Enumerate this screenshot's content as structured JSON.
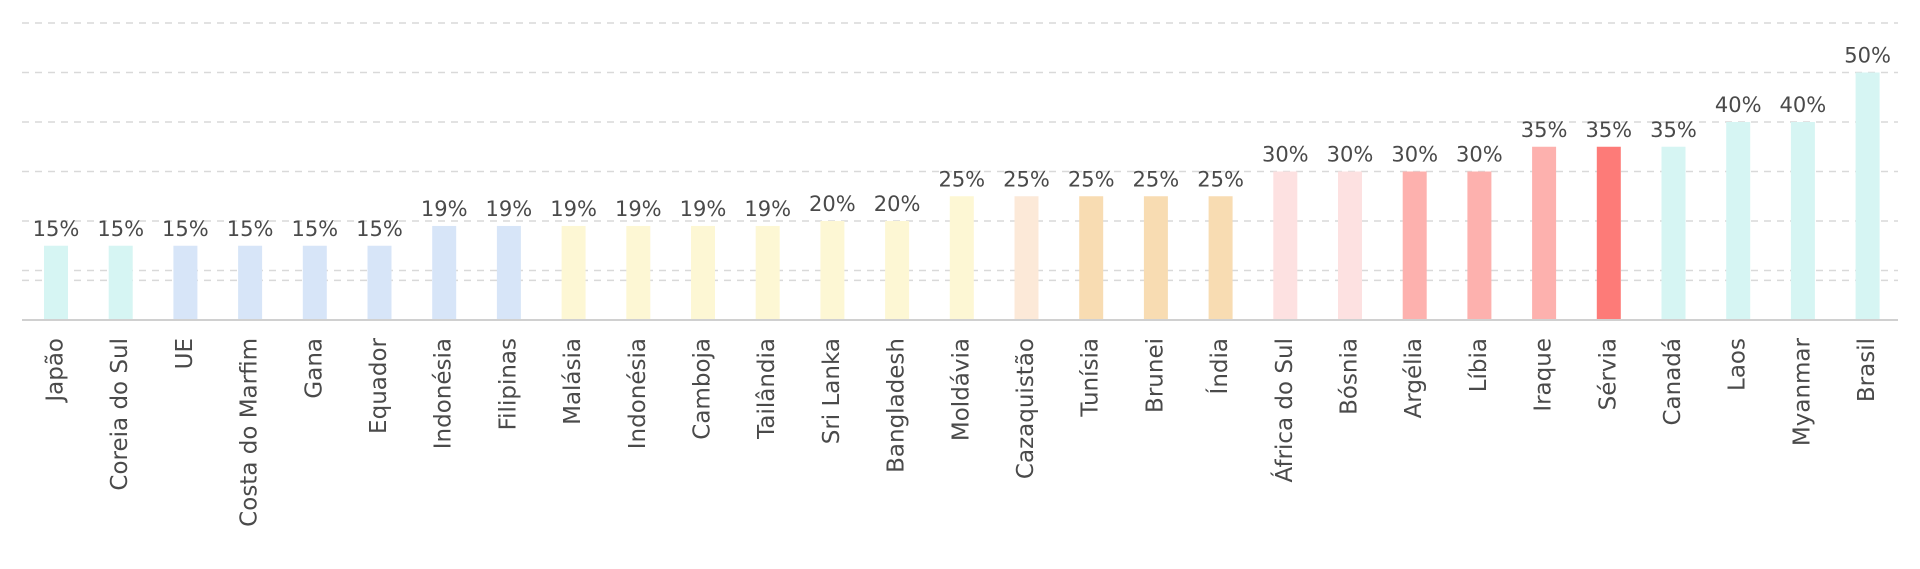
{
  "chart_data": {
    "type": "bar",
    "title": "",
    "xlabel": "",
    "ylabel": "",
    "ylim": [
      0,
      60
    ],
    "grid": true,
    "value_suffix": "%",
    "categories": [
      "Japão",
      "Coreia do Sul",
      "UE",
      "Costa do Marfim",
      "Gana",
      "Equador",
      "Indonésia",
      "Filipinas",
      "Malásia",
      "Indonésia",
      "Camboja",
      "Tailândia",
      "Sri Lanka",
      "Bangladesh",
      "Moldávia",
      "Cazaquistão",
      "Tunísia",
      "Brunei",
      "Índia",
      "África do Sul",
      "Bósnia",
      "Argélia",
      "Líbia",
      "Iraque",
      "Sérvia",
      "Canadá",
      "Laos",
      "Myanmar",
      "Brasil"
    ],
    "values": [
      15,
      15,
      15,
      15,
      15,
      15,
      19,
      19,
      19,
      19,
      19,
      19,
      20,
      20,
      25,
      25,
      25,
      25,
      25,
      30,
      30,
      30,
      30,
      35,
      35,
      35,
      40,
      40,
      50
    ],
    "value_labels": [
      "15%",
      "15%",
      "15%",
      "15%",
      "15%",
      "15%",
      "19%",
      "19%",
      "19%",
      "19%",
      "19%",
      "19%",
      "20%",
      "20%",
      "25%",
      "25%",
      "25%",
      "25%",
      "25%",
      "30%",
      "30%",
      "30%",
      "30%",
      "35%",
      "35%",
      "35%",
      "40%",
      "40%",
      "50%"
    ],
    "colors": [
      "#d6f5f3",
      "#d6f5f3",
      "#d7e5f8",
      "#d7e5f8",
      "#d7e5f8",
      "#d7e5f8",
      "#d7e5f8",
      "#d7e5f8",
      "#fdf7d4",
      "#fdf7d4",
      "#fdf7d4",
      "#fdf7d4",
      "#fdf7d4",
      "#fdf7d4",
      "#fdf7d4",
      "#fce9d8",
      "#f8dcb2",
      "#f8dcb2",
      "#f8dcb2",
      "#fde1e1",
      "#fde1e1",
      "#fdb1ae",
      "#fdb1ae",
      "#fdb1ae",
      "#fd7b78",
      "#d6f5f3",
      "#d6f5f3",
      "#d6f5f3",
      "#d6f5f3"
    ],
    "label_color": "#4a4a4a",
    "grid_color": "#d9d9d9"
  }
}
